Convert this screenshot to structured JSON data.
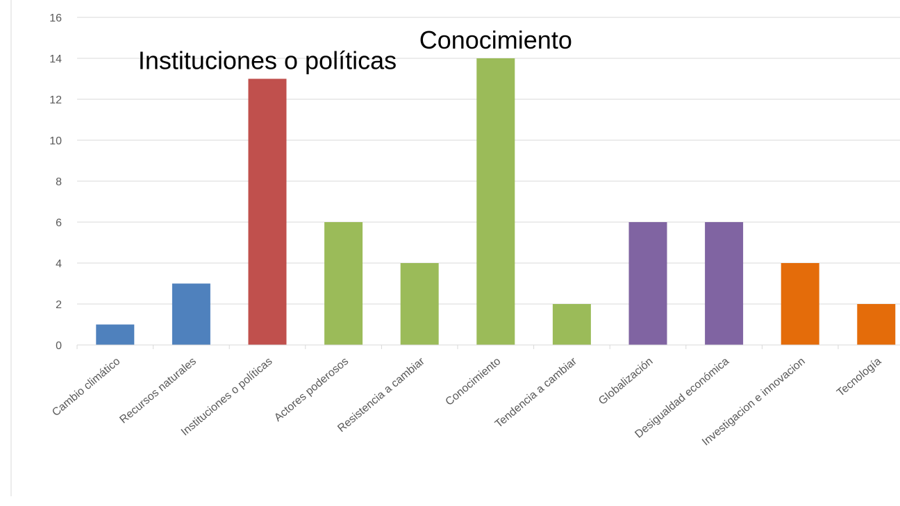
{
  "chart_data": {
    "type": "bar",
    "title": "",
    "xlabel": "",
    "ylabel": "",
    "ylim": [
      0,
      16
    ],
    "yticks": [
      0,
      2,
      4,
      6,
      8,
      10,
      12,
      14,
      16
    ],
    "grid": true,
    "legend": "none",
    "categories": [
      "Cambio climático",
      "Recursos naturales",
      "Instituciones o políticas",
      "Actores poderosos",
      "Resistencia a cambiar",
      "Conocimiento",
      "Tendencia a cambiar",
      "Globalización",
      "Desigualdad económica",
      "Investigacion e innovacion",
      "Tecnología"
    ],
    "values": [
      1,
      3,
      13,
      6,
      4,
      14,
      2,
      6,
      6,
      4,
      2
    ],
    "colors": [
      "#4f81bd",
      "#4f81bd",
      "#c0504d",
      "#9bbb59",
      "#9bbb59",
      "#9bbb59",
      "#9bbb59",
      "#8064a2",
      "#8064a2",
      "#e46c0a",
      "#e46c0a"
    ],
    "annotations": [
      {
        "text": "Instituciones o políticas",
        "category": "Instituciones o políticas"
      },
      {
        "text": "Conocimiento",
        "category": "Conocimiento"
      }
    ]
  },
  "colors": {
    "grid": "#d9d9d9",
    "axis": "#d9d9d9",
    "text": "#595959"
  }
}
